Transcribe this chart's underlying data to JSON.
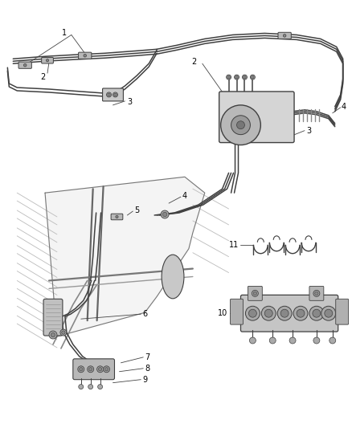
{
  "bg_color": "#ffffff",
  "line_color": "#404040",
  "label_color": "#000000",
  "fig_width": 4.38,
  "fig_height": 5.33,
  "dpi": 100,
  "lw_main": 1.1,
  "lw_thin": 0.7,
  "lw_thick": 1.6,
  "clamp_color": "#555555",
  "component_fill": "#cccccc",
  "structure_color": "#888888"
}
